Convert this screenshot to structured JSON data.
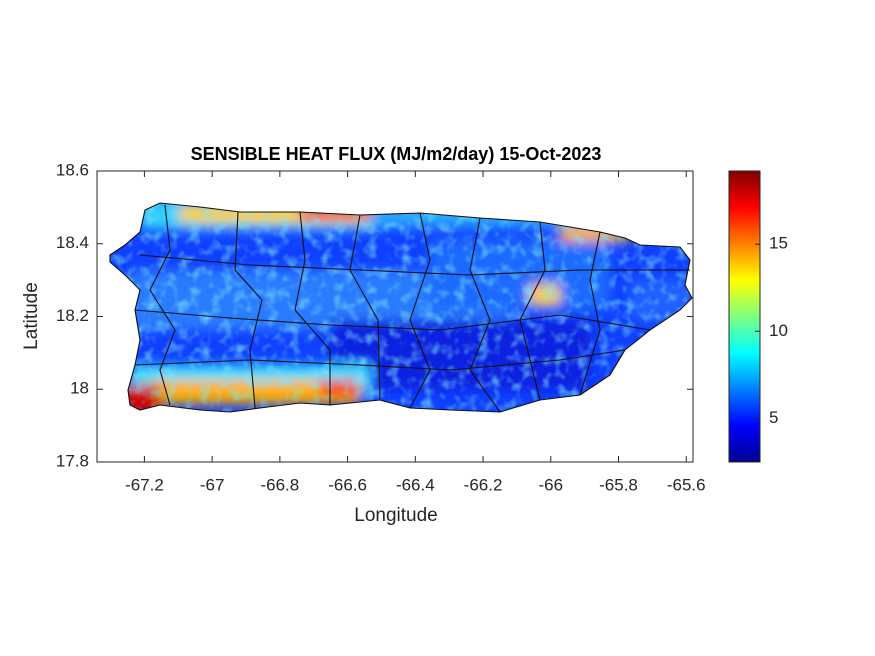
{
  "chart_data": {
    "type": "map",
    "title": "SENSIBLE HEAT FLUX (MJ/m2/day) 15-Oct-2023",
    "xlabel": "Longitude",
    "ylabel": "Latitude",
    "xlim": [
      -67.34,
      -65.58
    ],
    "xticks": [
      -67.2,
      -67,
      -66.8,
      -66.6,
      -66.4,
      -66.2,
      -66,
      -65.8,
      -65.6
    ],
    "ylim": [
      17.8,
      18.6
    ],
    "yticks": [
      17.8,
      18,
      18.2,
      18.4,
      18.6
    ],
    "colorbar": {
      "lim": [
        2.5,
        19.2
      ],
      "ticks": [
        5,
        10,
        15
      ],
      "colormap": "jet"
    }
  }
}
